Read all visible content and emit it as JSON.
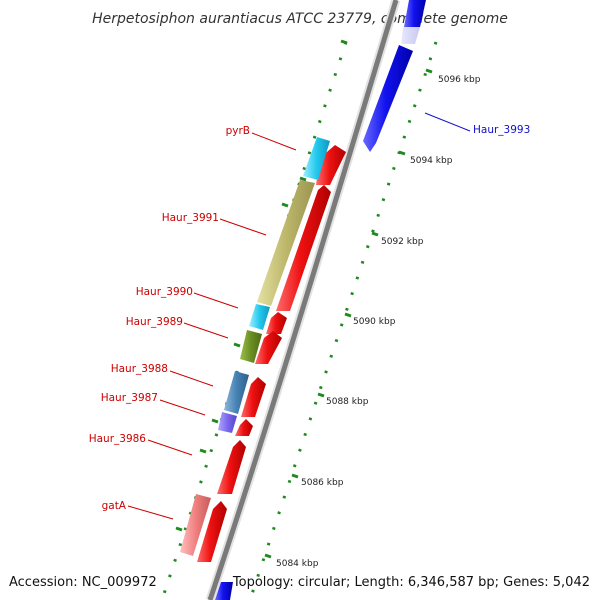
{
  "title": "Herpetosiphon aurantiacus ATCC 23779, complete genome",
  "footer": {
    "accession": "Accession: NC_009972",
    "summary": "Topology: circular; Length: 6,346,587 bp; Genes: 5,042"
  },
  "colors": {
    "backbone": "#7a7a7a",
    "tick_dots": "#1f8a1f",
    "forward_gene": "#e8151b",
    "reverse_gene": "#1010e6",
    "label_forward": "#cc0000",
    "label_reverse": "#1010cc"
  },
  "scale_labels": [
    "5096 kbp",
    "5094 kbp",
    "5092 kbp",
    "5090 kbp",
    "5088 kbp",
    "5086 kbp",
    "5084 kbp"
  ],
  "gene_labels": [
    {
      "text": "pyrB",
      "strand": "forward"
    },
    {
      "text": "Haur_3991",
      "strand": "forward"
    },
    {
      "text": "Haur_3990",
      "strand": "forward"
    },
    {
      "text": "Haur_3989",
      "strand": "forward"
    },
    {
      "text": "Haur_3988",
      "strand": "forward"
    },
    {
      "text": "Haur_3987",
      "strand": "forward"
    },
    {
      "text": "Haur_3986",
      "strand": "forward"
    },
    {
      "text": "gatA",
      "strand": "forward"
    },
    {
      "text": "Haur_3993",
      "strand": "reverse"
    }
  ],
  "cog_colors": [
    "#33ccee",
    "#bdb76b",
    "#6b8e23",
    "#4682b4",
    "#7b68ee",
    "#f08080"
  ]
}
